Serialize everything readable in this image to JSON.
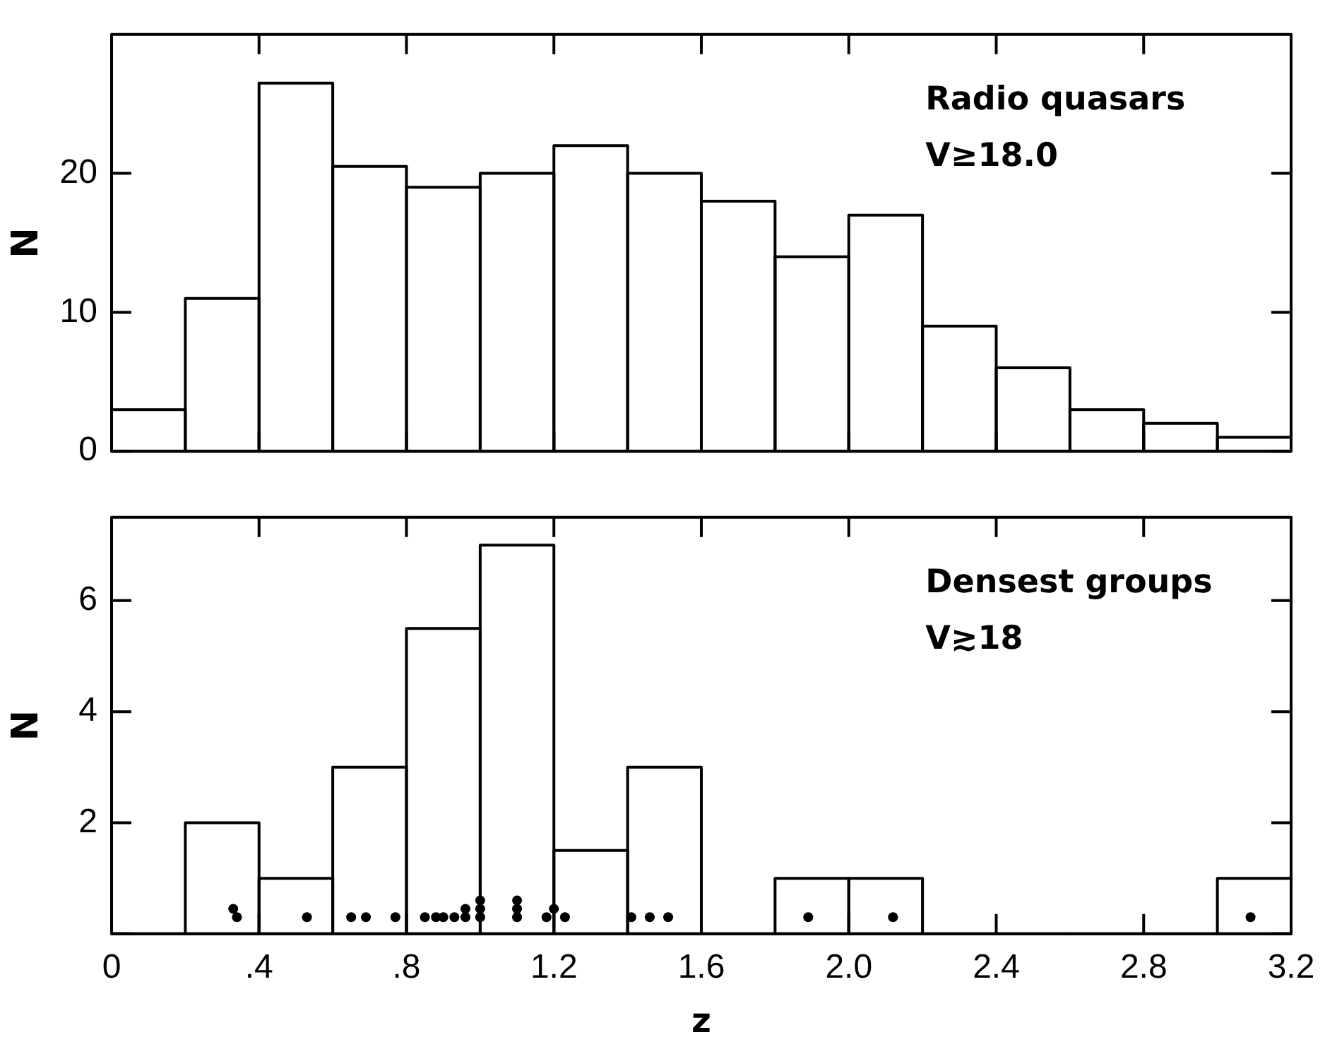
{
  "chart_data": [
    {
      "type": "histogram",
      "ylabel": "N",
      "annotations": [
        "Radio quasars",
        "V≥18.0"
      ],
      "bins": [
        0,
        0.2,
        0.4,
        0.6,
        0.8,
        1.0,
        1.2,
        1.4,
        1.6,
        1.8,
        2.0,
        2.2,
        2.4,
        2.6,
        2.8,
        3.0,
        3.2
      ],
      "values": [
        3,
        11,
        26.5,
        20.5,
        19,
        20,
        22,
        20,
        18,
        14,
        17,
        9,
        6,
        3,
        2,
        1
      ],
      "color": "#000000",
      "xlim": [
        0,
        3.2
      ],
      "xticks": [
        0,
        0.4,
        0.8,
        1.2,
        1.6,
        2,
        2.4,
        2.8,
        3.2
      ],
      "ylim": [
        0,
        30
      ],
      "yticks": [
        0,
        10,
        20
      ],
      "tick_labels": "y"
    },
    {
      "type": "histogram",
      "xlabel": "z",
      "ylabel": "N",
      "annotations": [
        "Densest groups",
        "V≳18"
      ],
      "bins": [
        0,
        0.2,
        0.4,
        0.6,
        0.8,
        1.0,
        1.2,
        1.4,
        1.6,
        1.8,
        2.0,
        2.2,
        2.4,
        2.6,
        2.8,
        3.0,
        3.2
      ],
      "values": [
        0,
        2,
        1,
        3,
        5.5,
        7,
        1.5,
        3,
        0,
        1,
        1,
        0,
        0,
        0,
        0,
        1
      ],
      "color": "#000000",
      "marker": "circle",
      "series": [
        {
          "type": "scatter",
          "color": "#000000",
          "x": [
            0.33,
            0.34,
            0.53,
            0.65,
            0.69,
            0.77,
            0.85,
            0.88,
            0.9,
            0.93,
            0.96,
            0.96,
            1.0,
            1.0,
            1.0,
            1.1,
            1.1,
            1.1,
            1.18,
            1.2,
            1.23,
            1.41,
            1.46,
            1.51,
            1.89,
            2.12,
            3.09
          ],
          "values": [
            0.45,
            0.3,
            0.3,
            0.3,
            0.3,
            0.3,
            0.3,
            0.3,
            0.3,
            0.3,
            0.3,
            0.45,
            0.3,
            0.45,
            0.6,
            0.3,
            0.45,
            0.6,
            0.3,
            0.45,
            0.3,
            0.3,
            0.3,
            0.3,
            0.3,
            0.3,
            0.3
          ]
        }
      ],
      "xlim": [
        0,
        3.2
      ],
      "xticks": [
        0,
        {
          "value": 0.4,
          "label": ".4"
        },
        {
          "value": 0.8,
          "label": ".8"
        },
        1.2,
        1.6,
        {
          "value": 2,
          "label": "2.0"
        },
        2.4,
        2.8,
        3.2
      ],
      "ylim": [
        0,
        7.5
      ],
      "yticks": [
        {
          "value": 0,
          "label": null
        },
        2,
        4,
        6
      ]
    }
  ]
}
